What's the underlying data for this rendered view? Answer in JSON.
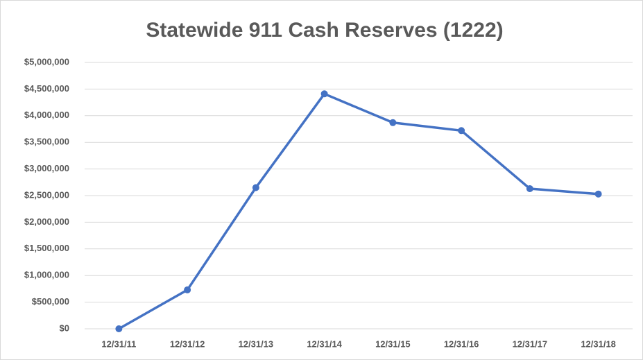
{
  "chart_data": {
    "type": "line",
    "title": "Statewide 911 Cash Reserves (1222)",
    "categories": [
      "12/31/11",
      "12/31/12",
      "12/31/13",
      "12/31/14",
      "12/31/15",
      "12/31/16",
      "12/31/17",
      "12/31/18"
    ],
    "values": [
      0,
      730000,
      2650000,
      4410000,
      3870000,
      3720000,
      2630000,
      2530000
    ],
    "color": "#4472c4",
    "ylim": [
      0,
      5000000
    ],
    "yticks": [
      {
        "value": 0,
        "label": "$0"
      },
      {
        "value": 500000,
        "label": "$500,000"
      },
      {
        "value": 1000000,
        "label": "$1,000,000"
      },
      {
        "value": 1500000,
        "label": "$1,500,000"
      },
      {
        "value": 2000000,
        "label": "$2,000,000"
      },
      {
        "value": 2500000,
        "label": "$2,500,000"
      },
      {
        "value": 3000000,
        "label": "$3,000,000"
      },
      {
        "value": 3500000,
        "label": "$3,500,000"
      },
      {
        "value": 4000000,
        "label": "$4,000,000"
      },
      {
        "value": 4500000,
        "label": "$4,500,000"
      },
      {
        "value": 5000000,
        "label": "$5,000,000"
      }
    ],
    "grid": true
  }
}
